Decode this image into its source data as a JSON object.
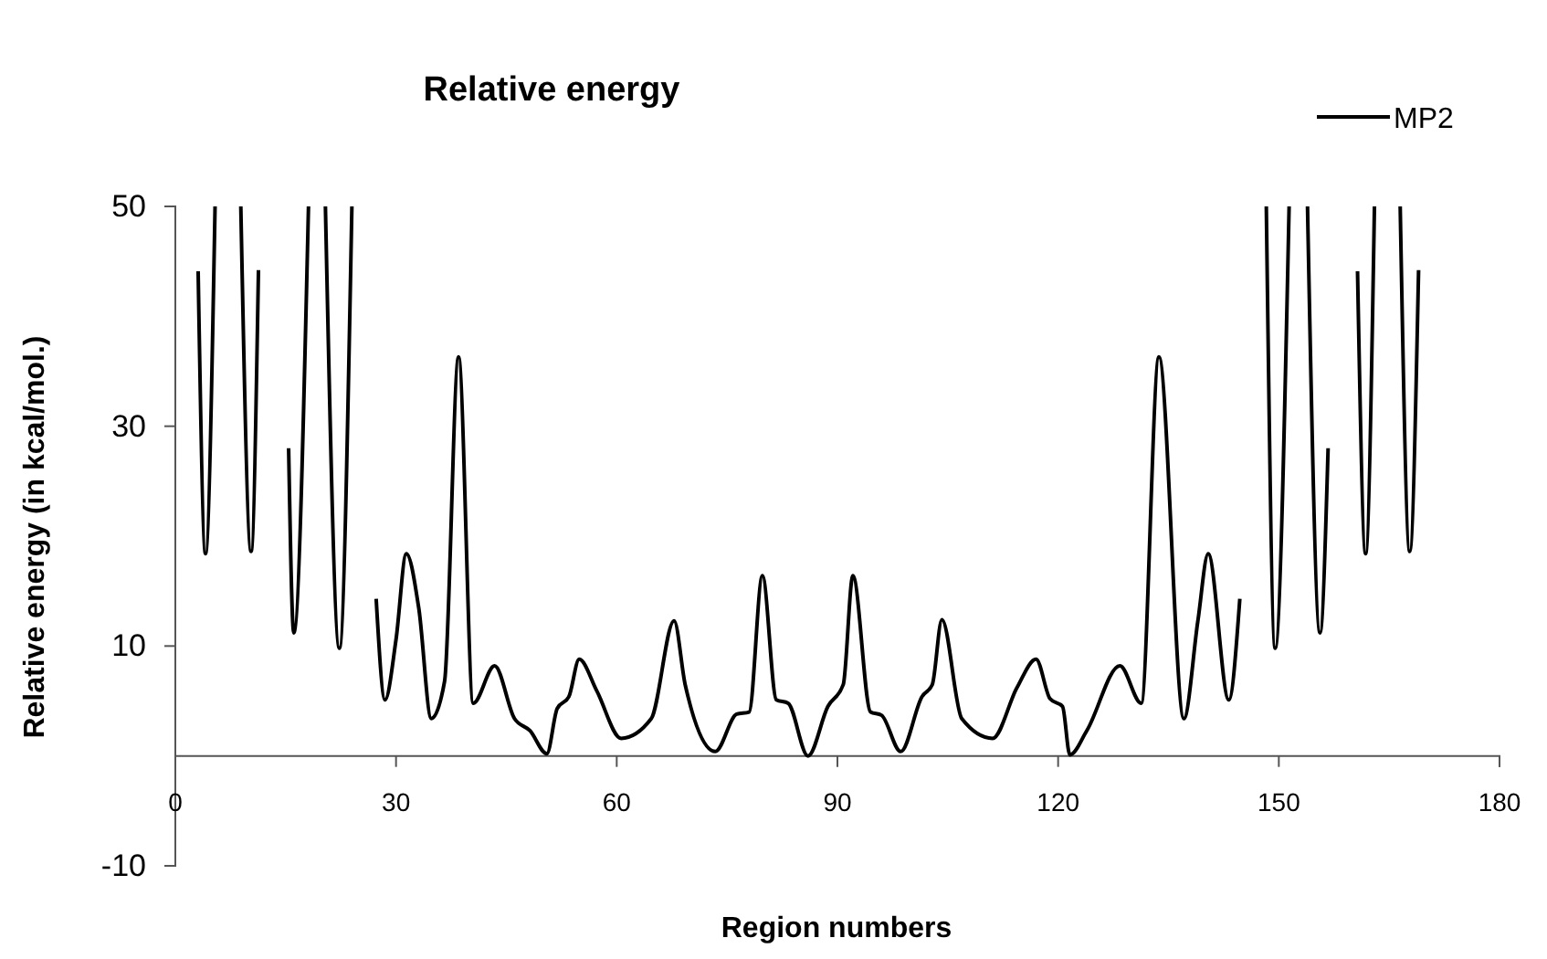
{
  "chart_data": {
    "type": "line",
    "title": "Relative energy",
    "xlabel": "Region numbers",
    "ylabel": "Relative energy (in kcal/mol.)",
    "x": [
      3.1,
      4.1,
      5.4,
      7.0,
      8.9,
      10.3,
      11.3,
      13.0,
      15.4,
      16.1,
      18.1,
      19.0,
      20.4,
      22.3,
      24.0,
      25.5,
      27.3,
      28.5,
      30.0,
      31.4,
      33.1,
      34.8,
      36.6,
      38.5,
      40.5,
      43.4,
      46.1,
      48.2,
      50.5,
      51.9,
      53.5,
      54.9,
      57.3,
      60.6,
      64.7,
      67.8,
      69.3,
      73.4,
      76.3,
      78.0,
      79.8,
      81.7,
      83.3,
      86.0,
      88.7,
      90.8,
      92.1,
      94.5,
      96.0,
      98.6,
      101.5,
      102.9,
      104.2,
      106.9,
      111.1,
      114.4,
      117.0,
      118.9,
      120.6,
      121.6,
      123.9,
      128.4,
      131.3,
      133.7,
      137.1,
      139.0,
      140.4,
      143.2,
      144.7,
      146.5,
      148.3,
      149.5,
      151.4,
      152.5,
      153.9,
      155.6,
      156.7,
      158.5,
      160.7,
      161.8,
      163.0,
      164.5,
      166.5,
      167.8,
      169.0
    ],
    "series": [
      {
        "name": "MP2",
        "color": "#000000",
        "values": [
          44.1,
          18.4,
          50,
          null,
          50,
          18.6,
          44.2,
          null,
          28.0,
          11.2,
          50,
          null,
          50,
          9.8,
          50,
          null,
          14.3,
          5.1,
          10.6,
          18.4,
          13.4,
          3.4,
          6.8,
          36.3,
          4.8,
          8.2,
          3.4,
          2.3,
          0.2,
          4.3,
          5.4,
          8.8,
          5.9,
          1.6,
          3.4,
          12.3,
          6.5,
          0.4,
          3.8,
          4.0,
          16.4,
          5.1,
          4.8,
          0,
          4.5,
          6.5,
          16.4,
          4.0,
          3.7,
          0.4,
          5.4,
          6.5,
          12.4,
          3.4,
          1.6,
          6.2,
          8.8,
          5.2,
          4.5,
          0.1,
          2.3,
          8.2,
          4.8,
          36.3,
          3.4,
          12.3,
          18.4,
          5.1,
          14.3,
          null,
          50,
          9.8,
          50,
          null,
          50,
          11.2,
          28.0,
          null,
          44.1,
          18.4,
          50,
          null,
          50,
          18.6,
          44.2
        ]
      }
    ],
    "xlim": [
      0,
      180
    ],
    "xticks": [
      0,
      30,
      60,
      90,
      120,
      150,
      180
    ],
    "ylim": [
      -10,
      50
    ],
    "yticks": [
      -10,
      10,
      30,
      50
    ],
    "legend": "top right",
    "line_style": "solid",
    "marker": "none",
    "grid": false
  }
}
